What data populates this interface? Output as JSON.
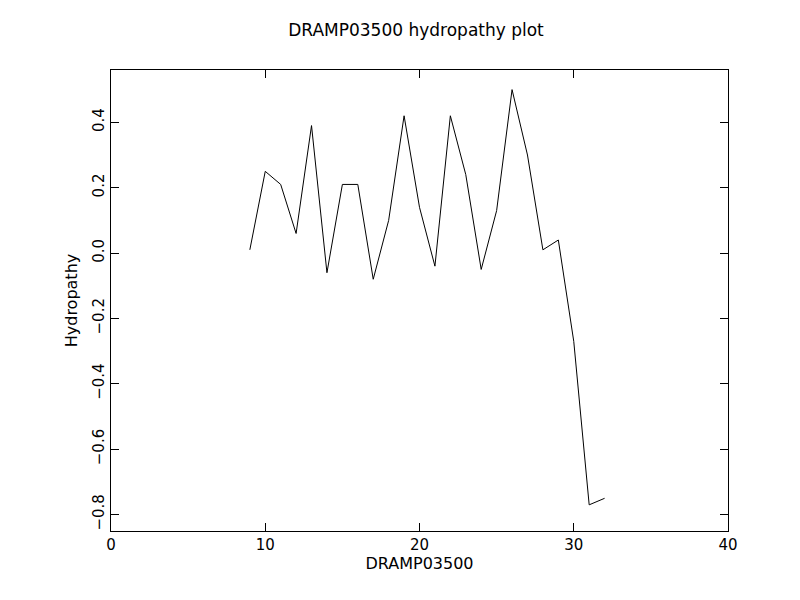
{
  "chart_data": {
    "type": "line",
    "title": "DRAMP03500 hydropathy plot",
    "x_label": "DRAMP03500",
    "y_label": "Hydropathy",
    "x": [
      9,
      10,
      11,
      12,
      13,
      14,
      15,
      16,
      17,
      18,
      19,
      20,
      21,
      22,
      23,
      24,
      25,
      26,
      27,
      28,
      29,
      30,
      31,
      32
    ],
    "values": [
      0.01,
      0.25,
      0.21,
      0.06,
      0.39,
      -0.06,
      0.21,
      0.21,
      -0.08,
      0.1,
      0.42,
      0.14,
      -0.04,
      0.42,
      0.24,
      -0.05,
      0.13,
      0.5,
      0.3,
      0.01,
      0.04,
      -0.27,
      -0.77,
      -0.75
    ],
    "color": "#000000",
    "xlim": [
      0,
      40
    ],
    "xticks": [
      0,
      10,
      20,
      30,
      40
    ],
    "ylim": [
      -0.85,
      0.56
    ],
    "yticks": [
      {
        "value": -0.8,
        "label": "−0.8"
      },
      {
        "value": -0.6,
        "label": "−0.6"
      },
      {
        "value": -0.4,
        "label": "−0.4"
      },
      {
        "value": -0.2,
        "label": "−0.2"
      },
      {
        "value": 0,
        "label": "0.0"
      },
      0.2,
      0.4
    ],
    "grid": false
  }
}
